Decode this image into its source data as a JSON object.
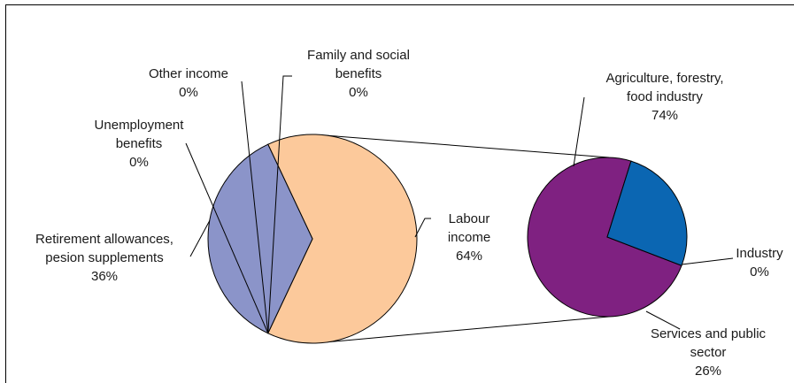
{
  "chart_data": {
    "type": "pie",
    "main_pie": {
      "slices": [
        {
          "name": "Labour income",
          "value": 64,
          "label": [
            "Labour",
            "income",
            "64%"
          ],
          "color": "#fcc99b"
        },
        {
          "name": "Retirement allowances, pesion supplements",
          "value": 36,
          "label": [
            "Retirement allowances,",
            "pesion supplements",
            "36%"
          ],
          "color": "#8b94c9"
        },
        {
          "name": "Unemployment benefits",
          "value": 0,
          "label": [
            "Unemployment",
            "benefits",
            "0%"
          ],
          "color": "#ffffff"
        },
        {
          "name": "Other income",
          "value": 0,
          "label": [
            "Other income",
            "0%"
          ],
          "color": "#ffffff"
        },
        {
          "name": "Family and social benefits",
          "value": 0,
          "label": [
            "Family and social",
            "benefits",
            "0%"
          ],
          "color": "#ffffff"
        }
      ]
    },
    "breakdown_pie": {
      "of": "Labour income",
      "slices": [
        {
          "name": "Agriculture, forestry, food industry",
          "value": 74,
          "label": [
            "Agriculture, forestry,",
            "food industry",
            "74%"
          ],
          "color": "#7f2181"
        },
        {
          "name": "Industry",
          "value": 0,
          "label": [
            "Industry",
            "0%"
          ],
          "color": "#ffffff"
        },
        {
          "name": "Services and public sector",
          "value": 26,
          "label": [
            "Services and public",
            "sector",
            "26%"
          ],
          "color": "#0b66b2"
        }
      ]
    }
  }
}
